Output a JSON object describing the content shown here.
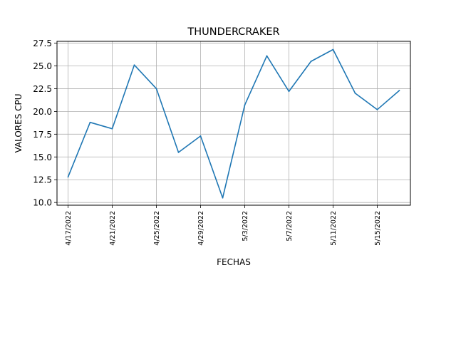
{
  "chart_data": {
    "type": "line",
    "title": "THUNDERCRAKER",
    "xlabel": "FECHAS",
    "ylabel": "VALORES CPU",
    "x": [
      "4/17/2022",
      "4/19/2022",
      "4/21/2022",
      "4/23/2022",
      "4/25/2022",
      "4/27/2022",
      "4/29/2022",
      "5/1/2022",
      "5/3/2022",
      "5/5/2022",
      "5/7/2022",
      "5/9/2022",
      "5/11/2022",
      "5/13/2022",
      "5/15/2022",
      "5/17/2022"
    ],
    "x_tick_labels": [
      "4/17/2022",
      "4/21/2022",
      "4/25/2022",
      "4/29/2022",
      "5/3/2022",
      "5/7/2022",
      "5/11/2022",
      "5/15/2022"
    ],
    "y_tick_labels": [
      "10.0",
      "12.5",
      "15.0",
      "17.5",
      "20.0",
      "22.5",
      "25.0",
      "27.5"
    ],
    "series": [
      {
        "values": [
          12.8,
          18.8,
          18.1,
          25.1,
          22.5,
          15.5,
          17.3,
          10.5,
          20.7,
          26.1,
          22.2,
          25.5,
          26.8,
          22.0,
          20.2,
          22.3
        ],
        "color": "#1f77b4"
      }
    ],
    "xlim": [
      "4/16/2022",
      "5/18/2022"
    ],
    "ylim": [
      9.7,
      27.7
    ],
    "yticks": [
      10.0,
      12.5,
      15.0,
      17.5,
      20.0,
      22.5,
      25.0,
      27.5
    ],
    "grid": true,
    "legend": "none"
  }
}
